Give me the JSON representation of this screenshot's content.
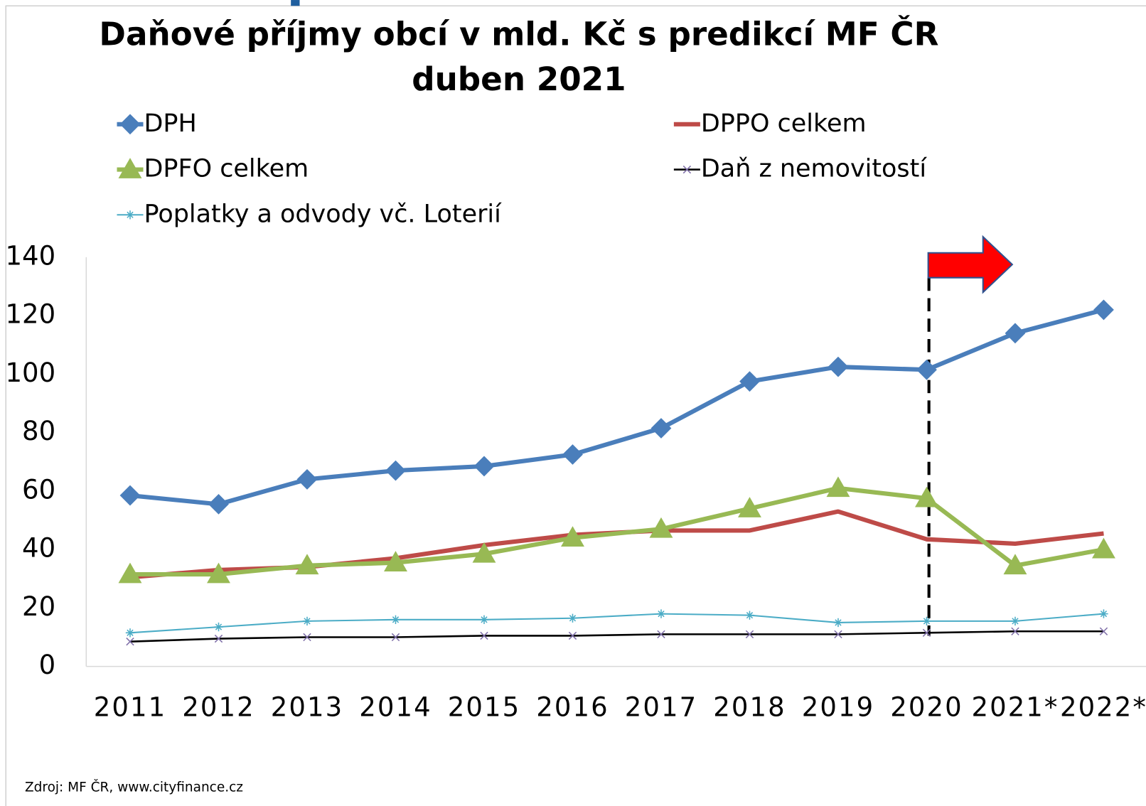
{
  "chart_data": {
    "type": "line",
    "title": "Daňové příjmy obcí v mld. Kč s predikcí MF ČR",
    "subtitle": "duben 2021",
    "source": "Zdroj: MF ČR, www.cityfinance.cz",
    "categories": [
      "2011",
      "2012",
      "2013",
      "2014",
      "2015",
      "2016",
      "2017",
      "2018",
      "2019",
      "2020",
      "2021*",
      "2022*"
    ],
    "series": [
      {
        "name": "DPH",
        "color": "#4a7ebb",
        "marker": "diamond",
        "values": [
          58.5,
          55.5,
          64,
          67,
          68.5,
          72.5,
          81.5,
          97.5,
          102.5,
          101.5,
          114,
          122
        ]
      },
      {
        "name": "DPPO celkem",
        "color": "#be4b48",
        "marker": "none",
        "values": [
          30.5,
          33,
          34,
          37,
          41.5,
          45,
          46.5,
          46.5,
          53,
          43.5,
          42,
          45.5
        ]
      },
      {
        "name": "DPFO celkem",
        "color": "#98b954",
        "marker": "triangle",
        "values": [
          31.5,
          31.5,
          34.5,
          35.5,
          38.5,
          44,
          47,
          54,
          61,
          57.5,
          34.5,
          40
        ]
      },
      {
        "name": "Daň z nemovitostí",
        "color": "#000000",
        "marker": "x",
        "values": [
          8.5,
          9.5,
          10,
          10,
          10.5,
          10.5,
          11,
          11,
          11,
          11.5,
          12,
          12
        ]
      },
      {
        "name": "Poplatky a odvody vč. Loterií",
        "color": "#4bacc6",
        "marker": "star",
        "values": [
          11.5,
          13.5,
          15.5,
          16,
          16,
          16.5,
          18,
          17.5,
          15,
          15.5,
          15.5,
          18
        ]
      }
    ],
    "ylim": [
      0,
      140
    ],
    "yticks": [
      0,
      20,
      40,
      60,
      80,
      100,
      120,
      140
    ],
    "grid": false
  }
}
